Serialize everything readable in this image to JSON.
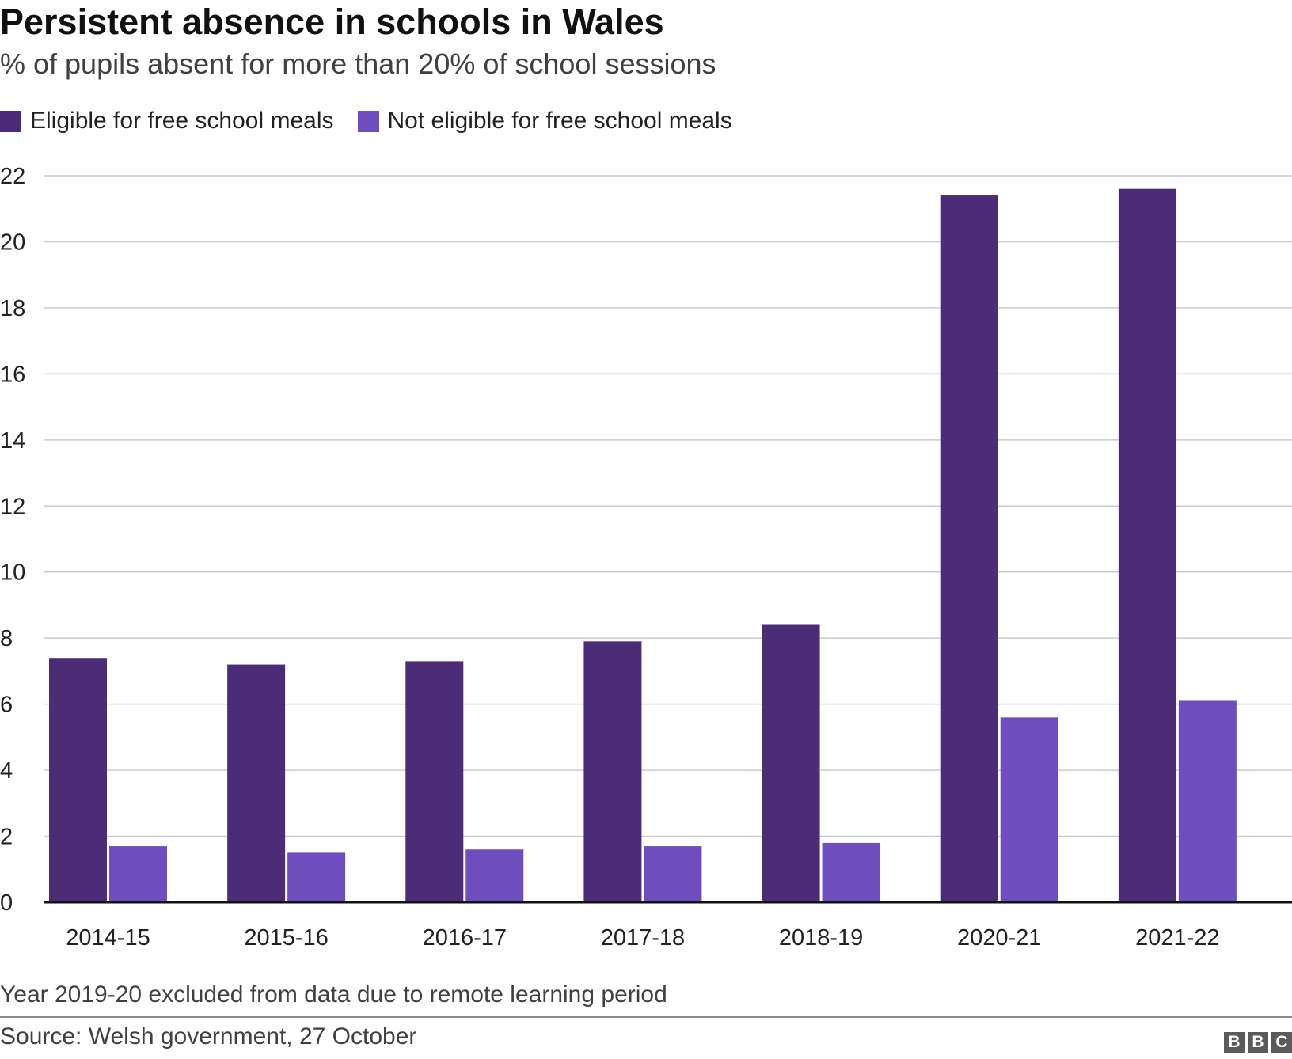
{
  "header": {
    "title": "Persistent absence in schools in Wales",
    "subtitle": "% of pupils absent for more than 20% of school sessions"
  },
  "legend": {
    "items": [
      {
        "label": "Eligible for free school meals",
        "color": "#4b2c77"
      },
      {
        "label": "Not eligible for free school meals",
        "color": "#6e4ebf"
      }
    ]
  },
  "chart_data": {
    "type": "bar",
    "title": "Persistent absence in schools in Wales",
    "subtitle": "% of pupils absent for more than 20% of school sessions",
    "xlabel": "",
    "ylabel": "",
    "categories": [
      "2014-15",
      "2015-16",
      "2016-17",
      "2017-18",
      "2018-19",
      "2020-21",
      "2021-22"
    ],
    "series": [
      {
        "name": "Eligible for free school meals",
        "color": "#4b2c77",
        "values": [
          7.4,
          7.2,
          7.3,
          7.9,
          8.4,
          21.4,
          21.6
        ]
      },
      {
        "name": "Not eligible for free school meals",
        "color": "#6e4ebf",
        "values": [
          1.7,
          1.5,
          1.6,
          1.7,
          1.8,
          5.6,
          6.1
        ]
      }
    ],
    "ylim": [
      0,
      22
    ],
    "yticks": [
      0,
      2,
      4,
      6,
      8,
      10,
      12,
      14,
      16,
      18,
      20,
      22
    ],
    "grid": true,
    "legend_position": "top-left"
  },
  "footer": {
    "note": "Year 2019-20 excluded from data due to remote learning period",
    "source": "Source: Welsh government, 27 October",
    "logo_letters": [
      "B",
      "B",
      "C"
    ]
  }
}
